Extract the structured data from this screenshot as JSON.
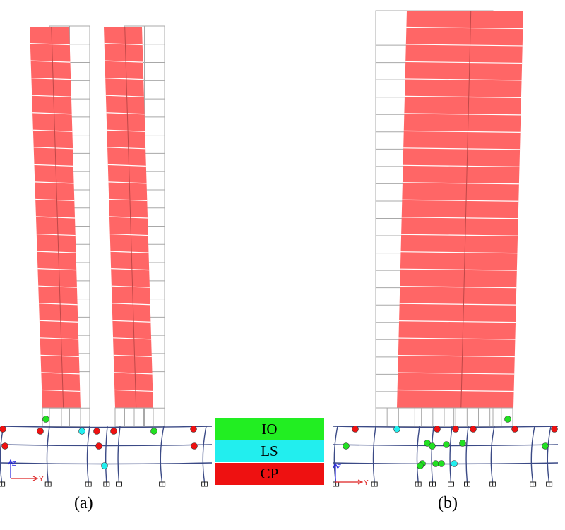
{
  "colors": {
    "wall": "#ff6666",
    "frame": "#a8a8a8",
    "beam": "#3b4a86",
    "io": "#22e022",
    "ls": "#22eeee",
    "cp": "#ee1111",
    "axis_z": "#2222dd",
    "axis_y": "#dd2222"
  },
  "legend": [
    {
      "label": "IO",
      "color": "#22ee22"
    },
    {
      "label": "LS",
      "color": "#22eeee"
    },
    {
      "label": "CP",
      "color": "#ee1111"
    }
  ],
  "captions": {
    "a": "(a)",
    "b": "(b)"
  },
  "axes": {
    "z": "Z",
    "y": "Y"
  },
  "hinges": {
    "a": [
      "cp",
      "cp",
      "cp",
      "cp",
      "cp",
      "cp",
      "cp",
      "cp",
      "ls",
      "ls",
      "io",
      "io"
    ],
    "b": [
      "cp",
      "cp",
      "cp",
      "cp",
      "cp",
      "cp",
      "ls",
      "io",
      "io",
      "io",
      "io",
      "io",
      "io",
      "io",
      "io",
      "io",
      "io",
      "ls",
      "io"
    ]
  }
}
